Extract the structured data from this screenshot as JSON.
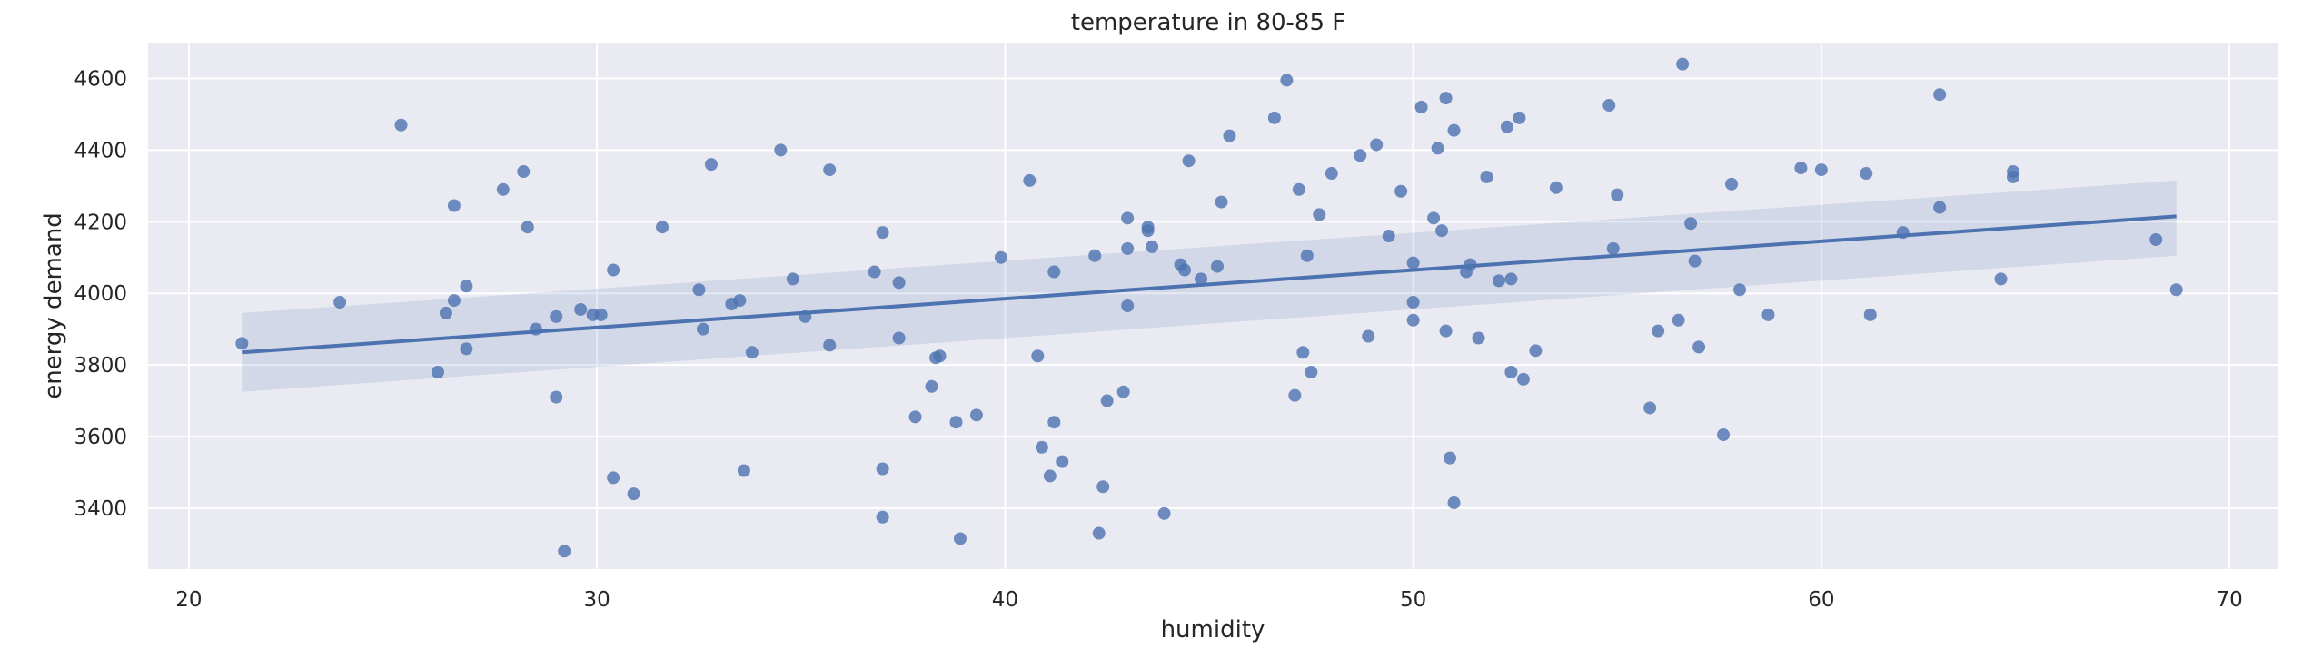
{
  "chart_data": {
    "type": "scatter",
    "title": "temperature in 80-85 F",
    "xlabel": "humidity",
    "ylabel": "energy demand",
    "xlim": [
      19,
      71.2
    ],
    "ylim": [
      3230,
      4700
    ],
    "xticks": [
      20,
      30,
      40,
      50,
      60,
      70
    ],
    "yticks": [
      3400,
      3600,
      3800,
      4000,
      4200,
      4400,
      4600
    ],
    "grid": true,
    "style": "seaborn-darkgrid",
    "colors": {
      "background": "#EAEAF2",
      "grid": "#FFFFFF",
      "points": "#4C72B0",
      "line": "#4C72B0",
      "band": "#4C72B0"
    },
    "regression": {
      "x": [
        21.3,
        68.7
      ],
      "y": [
        3835,
        4215
      ],
      "ci_lower": [
        3725,
        4105
      ],
      "ci_upper": [
        3945,
        4315
      ]
    },
    "series": [
      {
        "points": [
          [
            21.3,
            3860
          ],
          [
            23.7,
            3975
          ],
          [
            25.2,
            4470
          ],
          [
            26.1,
            3780
          ],
          [
            26.3,
            3945
          ],
          [
            26.5,
            4245
          ],
          [
            26.5,
            3980
          ],
          [
            26.8,
            4020
          ],
          [
            26.8,
            3845
          ],
          [
            27.7,
            4290
          ],
          [
            28.2,
            4340
          ],
          [
            28.3,
            4185
          ],
          [
            28.5,
            3900
          ],
          [
            29.0,
            3935
          ],
          [
            29.0,
            3710
          ],
          [
            29.2,
            3280
          ],
          [
            29.6,
            3955
          ],
          [
            29.9,
            3940
          ],
          [
            30.1,
            3940
          ],
          [
            30.4,
            4065
          ],
          [
            30.4,
            3485
          ],
          [
            30.9,
            3440
          ],
          [
            31.6,
            4185
          ],
          [
            32.5,
            4010
          ],
          [
            32.6,
            3900
          ],
          [
            32.8,
            4360
          ],
          [
            33.3,
            3970
          ],
          [
            33.5,
            3980
          ],
          [
            33.6,
            3505
          ],
          [
            33.8,
            3835
          ],
          [
            34.5,
            4400
          ],
          [
            34.8,
            4040
          ],
          [
            35.1,
            3935
          ],
          [
            35.7,
            4345
          ],
          [
            35.7,
            3855
          ],
          [
            36.8,
            4060
          ],
          [
            37.0,
            4170
          ],
          [
            37.0,
            3510
          ],
          [
            37.0,
            3375
          ],
          [
            37.4,
            4030
          ],
          [
            37.4,
            3875
          ],
          [
            37.8,
            3655
          ],
          [
            38.2,
            3740
          ],
          [
            38.3,
            3820
          ],
          [
            38.4,
            3825
          ],
          [
            38.8,
            3640
          ],
          [
            38.9,
            3315
          ],
          [
            39.3,
            3660
          ],
          [
            39.9,
            4100
          ],
          [
            40.6,
            4315
          ],
          [
            40.8,
            3825
          ],
          [
            40.9,
            3570
          ],
          [
            41.1,
            3490
          ],
          [
            41.2,
            4060
          ],
          [
            41.2,
            3640
          ],
          [
            41.4,
            3530
          ],
          [
            42.2,
            4105
          ],
          [
            42.3,
            3330
          ],
          [
            42.4,
            3460
          ],
          [
            42.5,
            3700
          ],
          [
            42.9,
            3725
          ],
          [
            43.0,
            4210
          ],
          [
            43.0,
            4125
          ],
          [
            43.0,
            3965
          ],
          [
            43.5,
            4175
          ],
          [
            43.5,
            4185
          ],
          [
            43.6,
            4130
          ],
          [
            43.9,
            3385
          ],
          [
            44.3,
            4080
          ],
          [
            44.4,
            4065
          ],
          [
            44.5,
            4370
          ],
          [
            44.8,
            4040
          ],
          [
            45.2,
            4075
          ],
          [
            45.3,
            4255
          ],
          [
            45.5,
            4440
          ],
          [
            46.6,
            4490
          ],
          [
            46.9,
            4595
          ],
          [
            47.1,
            3715
          ],
          [
            47.2,
            4290
          ],
          [
            47.3,
            3835
          ],
          [
            47.4,
            4105
          ],
          [
            47.5,
            3780
          ],
          [
            47.7,
            4220
          ],
          [
            48.0,
            4335
          ],
          [
            48.7,
            4385
          ],
          [
            48.9,
            3880
          ],
          [
            49.1,
            4415
          ],
          [
            49.4,
            4160
          ],
          [
            49.7,
            4285
          ],
          [
            50.0,
            3975
          ],
          [
            50.0,
            3925
          ],
          [
            50.0,
            4085
          ],
          [
            50.2,
            4520
          ],
          [
            50.5,
            4210
          ],
          [
            50.6,
            4405
          ],
          [
            50.7,
            4175
          ],
          [
            50.8,
            4545
          ],
          [
            50.8,
            3895
          ],
          [
            50.9,
            3540
          ],
          [
            51.0,
            4455
          ],
          [
            51.0,
            3415
          ],
          [
            51.3,
            4060
          ],
          [
            51.4,
            4080
          ],
          [
            51.6,
            3875
          ],
          [
            51.8,
            4325
          ],
          [
            52.1,
            4035
          ],
          [
            52.3,
            4465
          ],
          [
            52.4,
            4040
          ],
          [
            52.4,
            3780
          ],
          [
            52.6,
            4490
          ],
          [
            52.7,
            3760
          ],
          [
            53.0,
            3840
          ],
          [
            53.5,
            4295
          ],
          [
            54.8,
            4525
          ],
          [
            54.9,
            4125
          ],
          [
            55.0,
            4275
          ],
          [
            55.8,
            3680
          ],
          [
            56.0,
            3895
          ],
          [
            56.5,
            3925
          ],
          [
            56.6,
            4640
          ],
          [
            56.8,
            4195
          ],
          [
            56.9,
            4090
          ],
          [
            57.0,
            3850
          ],
          [
            57.6,
            3605
          ],
          [
            57.8,
            4305
          ],
          [
            58.0,
            4010
          ],
          [
            58.7,
            3940
          ],
          [
            59.5,
            4350
          ],
          [
            60.0,
            4345
          ],
          [
            61.1,
            4335
          ],
          [
            61.2,
            3940
          ],
          [
            62.0,
            4170
          ],
          [
            62.9,
            4240
          ],
          [
            62.9,
            4555
          ],
          [
            64.4,
            4040
          ],
          [
            64.7,
            4340
          ],
          [
            64.7,
            4325
          ],
          [
            68.2,
            4150
          ],
          [
            68.7,
            4010
          ]
        ]
      }
    ]
  }
}
